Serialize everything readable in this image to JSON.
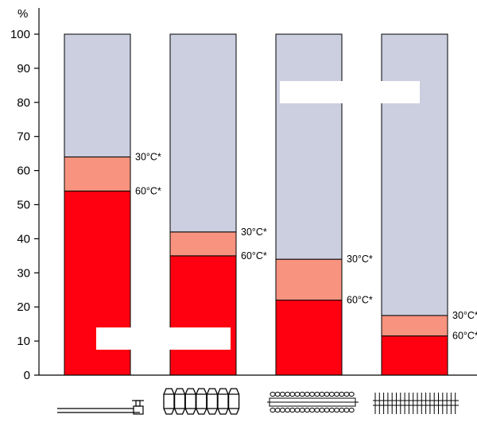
{
  "chart_data": {
    "type": "bar",
    "stacked": true,
    "y_unit_label": "%",
    "ylim": [
      0,
      100
    ],
    "y_ticks": [
      0,
      10,
      20,
      30,
      40,
      50,
      60,
      70,
      80,
      90,
      100
    ],
    "categories": [
      "floor-heating-pipe-icon",
      "cast-iron-radiator-icon",
      "finned-convector-icon",
      "fin-tube-heater-icon"
    ],
    "series": [
      {
        "key": "red",
        "color": "#ff0010",
        "values": [
          54,
          35,
          22,
          11.5
        ]
      },
      {
        "key": "salmon",
        "color": "#f7937e",
        "values": [
          10,
          7,
          12,
          6
        ]
      },
      {
        "key": "grey",
        "color": "#cbcfe0",
        "values": [
          36,
          58,
          66,
          82.5
        ]
      }
    ],
    "annotations": [
      {
        "bar": 0,
        "level": 64,
        "text": "30°C*"
      },
      {
        "bar": 0,
        "level": 54,
        "text": "60°C*"
      },
      {
        "bar": 1,
        "level": 42,
        "text": "30°C*"
      },
      {
        "bar": 1,
        "level": 35,
        "text": "60°C*"
      },
      {
        "bar": 2,
        "level": 34,
        "text": "30°C*"
      },
      {
        "bar": 2,
        "level": 22,
        "text": "60°C*"
      },
      {
        "bar": 3,
        "level": 17.5,
        "text": "30°C*"
      },
      {
        "bar": 3,
        "level": 11.5,
        "text": "60°C*"
      }
    ],
    "grid": false
  }
}
